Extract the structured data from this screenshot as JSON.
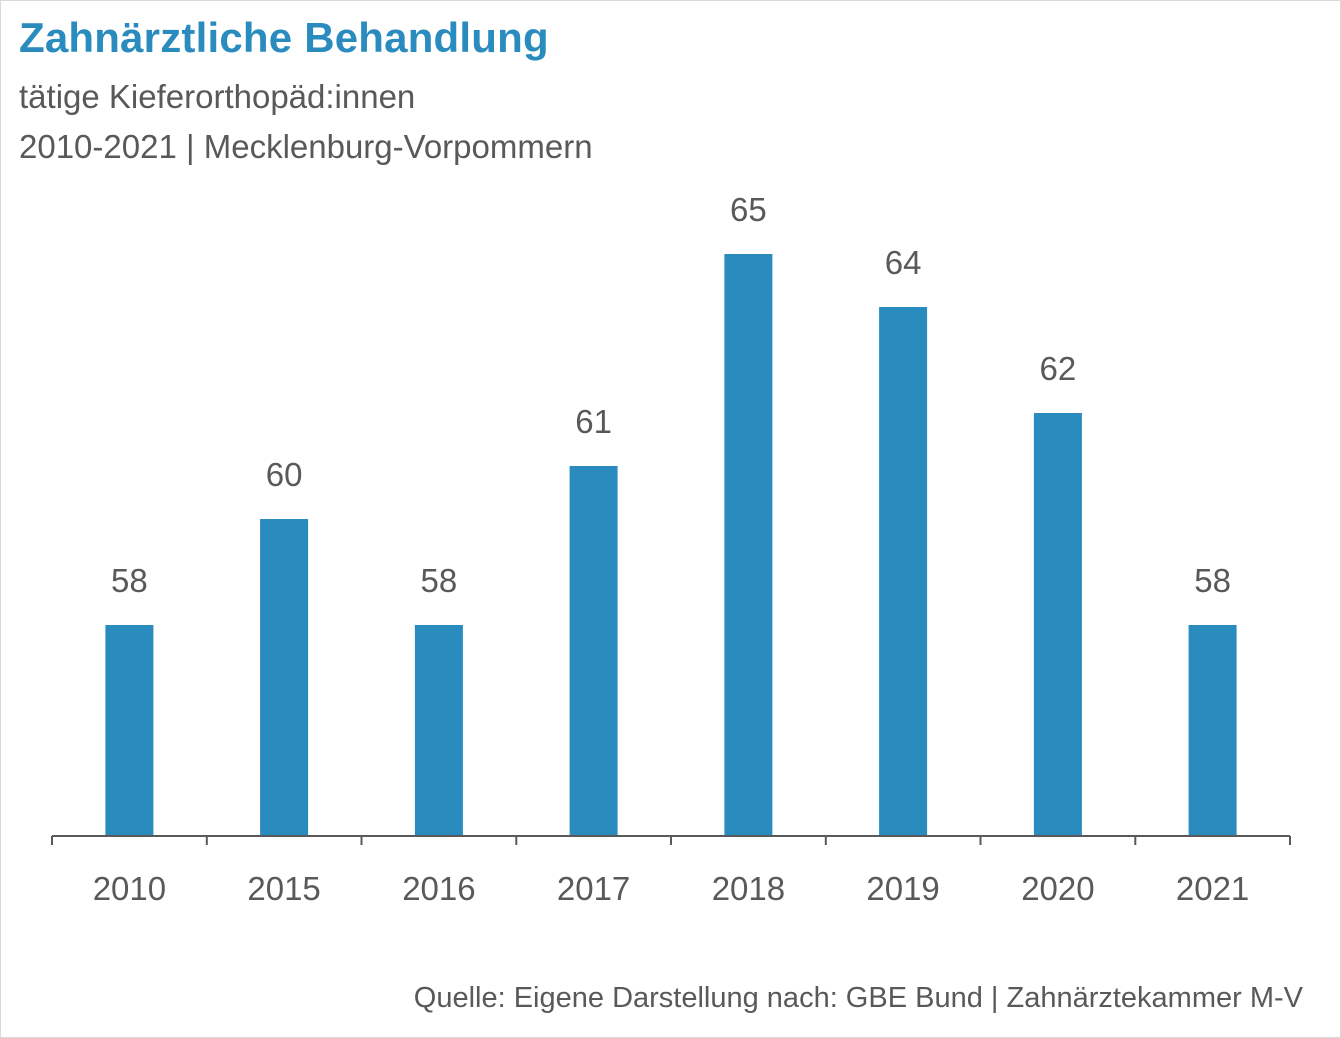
{
  "colors": {
    "accent": "#2a8bbf",
    "bar": "#2a8bbf",
    "text": "#595959",
    "axis": "#595959",
    "frame": "#d9d9d9"
  },
  "chart_data": {
    "type": "bar",
    "title": "Zahnärztliche Behandlung",
    "subtitle_lines": [
      "tätige Kieferorthopäd:innen",
      "2010-2021 | Mecklenburg-Vorpommern"
    ],
    "source": "Quelle: Eigene Darstellung nach: GBE Bund | Zahnärztekammer M-V",
    "categories": [
      "2010",
      "2015",
      "2016",
      "2017",
      "2018",
      "2019",
      "2020",
      "2021"
    ],
    "series": [
      {
        "values": [
          58,
          60,
          58,
          61,
          65,
          64,
          62,
          58
        ]
      }
    ],
    "data_labels": true,
    "xlabel": "",
    "ylabel": "",
    "y_axis_visible": false,
    "grid": false,
    "legend": "none"
  }
}
